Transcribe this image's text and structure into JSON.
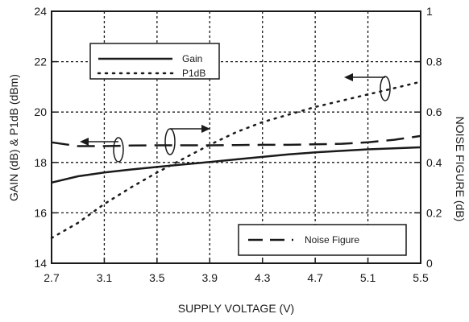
{
  "chart_data": {
    "type": "line",
    "title": "",
    "xlabel": "SUPPLY VOLTAGE (V)",
    "ylabel_left": "GAIN (dB) & P1dB (dBm)",
    "ylabel_right": "NOISE FIGURE (dB)",
    "xlim": [
      2.7,
      5.5
    ],
    "ylim_left": [
      14,
      24
    ],
    "ylim_right": [
      0,
      1
    ],
    "x_ticks": [
      "2.7",
      "3.1",
      "3.5",
      "3.9",
      "4.3",
      "4.7",
      "5.1",
      "5.5"
    ],
    "y_left_ticks": [
      "14",
      "16",
      "18",
      "20",
      "22",
      "24"
    ],
    "y_right_ticks": [
      "0",
      "0.2",
      "0.4",
      "0.6",
      "0.8",
      "1"
    ],
    "grid": true,
    "series": [
      {
        "name": "Gain",
        "axis": "left",
        "style": "solid",
        "x": [
          2.7,
          2.9,
          3.1,
          3.3,
          3.5,
          3.7,
          3.9,
          4.1,
          4.3,
          4.5,
          4.7,
          4.9,
          5.1,
          5.3,
          5.5
        ],
        "y": [
          17.2,
          17.45,
          17.6,
          17.72,
          17.82,
          17.92,
          18.02,
          18.12,
          18.22,
          18.32,
          18.4,
          18.46,
          18.52,
          18.56,
          18.6
        ]
      },
      {
        "name": "P1dB",
        "axis": "left",
        "style": "dotted",
        "x": [
          2.7,
          2.9,
          3.1,
          3.3,
          3.5,
          3.7,
          3.9,
          4.1,
          4.3,
          4.5,
          4.7,
          4.9,
          5.1,
          5.3,
          5.5
        ],
        "y": [
          15.0,
          15.6,
          16.35,
          17.0,
          17.6,
          18.15,
          18.7,
          19.2,
          19.6,
          19.9,
          20.2,
          20.45,
          20.7,
          20.95,
          21.2
        ]
      },
      {
        "name": "Noise Figure",
        "axis": "right",
        "style": "dashed",
        "x": [
          2.7,
          2.9,
          3.1,
          3.3,
          3.5,
          3.7,
          3.9,
          4.1,
          4.3,
          4.5,
          4.7,
          4.9,
          5.1,
          5.3,
          5.5
        ],
        "y": [
          0.48,
          0.465,
          0.465,
          0.467,
          0.468,
          0.468,
          0.468,
          0.469,
          0.47,
          0.47,
          0.472,
          0.474,
          0.48,
          0.49,
          0.505
        ]
      }
    ],
    "legends": [
      {
        "location": "top-left",
        "entries": [
          "Gain",
          "P1dB"
        ]
      },
      {
        "location": "bottom-right",
        "entries": [
          "Noise Figure"
        ]
      }
    ],
    "annotations": [
      {
        "kind": "axis-pointer",
        "points_to": "left",
        "near": "P1dB"
      },
      {
        "kind": "axis-pointer",
        "points_to": "right",
        "near": "Noise Figure"
      },
      {
        "kind": "axis-pointer",
        "points_to": "left",
        "near": "Gain"
      }
    ],
    "colors": {
      "line": "#1a1a1a",
      "grid": "#1a1a1a",
      "background": "#ffffff"
    }
  }
}
